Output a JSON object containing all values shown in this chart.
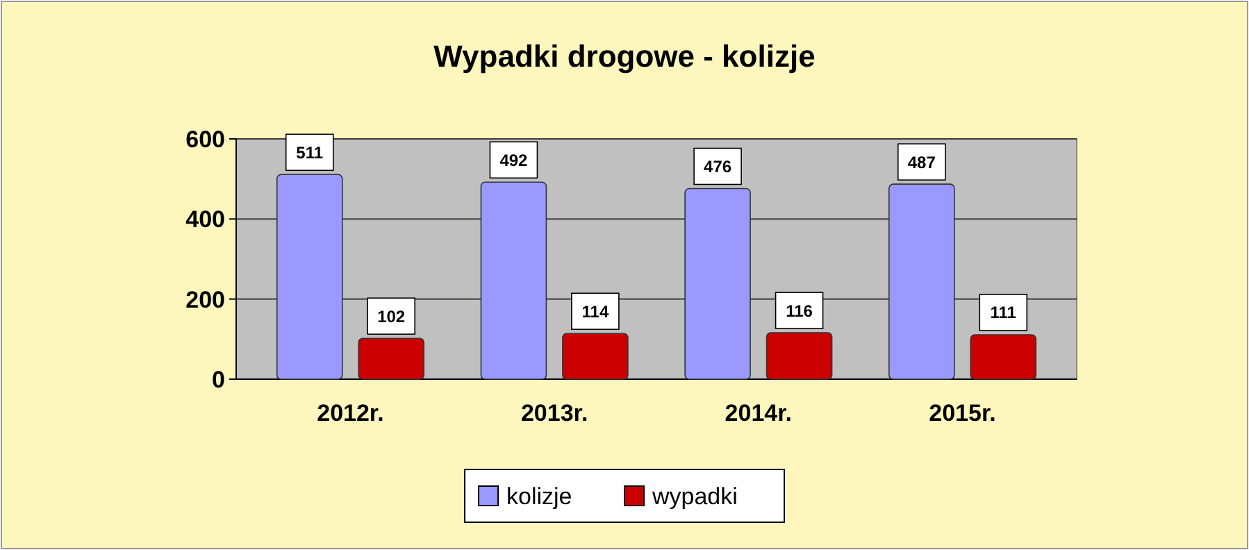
{
  "chart_data": {
    "type": "bar",
    "title": "Wypadki drogowe - kolizje",
    "categories": [
      "2012r.",
      "2013r.",
      "2014r.",
      "2015r."
    ],
    "series": [
      {
        "name": "kolizje",
        "color": "#9999ff",
        "values": [
          511,
          492,
          476,
          487
        ]
      },
      {
        "name": "wypadki",
        "color": "#cc0000",
        "values": [
          102,
          114,
          116,
          111
        ]
      }
    ],
    "ylim": [
      0,
      600
    ],
    "yticks": [
      0,
      200,
      400,
      600
    ],
    "grid": "y",
    "legend": "bottom",
    "data_labels": true
  }
}
